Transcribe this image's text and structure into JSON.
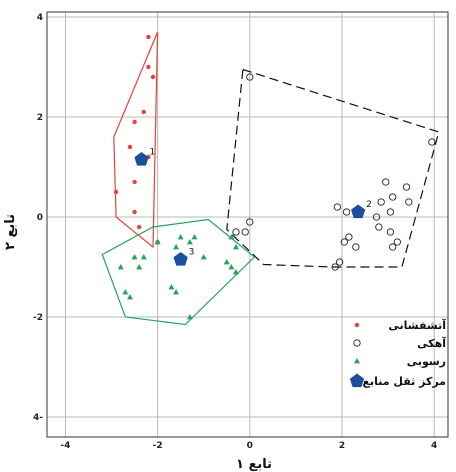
{
  "chart_data": {
    "type": "scatter",
    "title": "",
    "xlabel": "تابع ۱",
    "ylabel": "تابع ۲",
    "xlim": [
      -4.4,
      4.3
    ],
    "ylim": [
      -4.4,
      4.1
    ],
    "xticks": [
      -4,
      -2,
      0,
      2,
      4
    ],
    "yticks": [
      4,
      2,
      0,
      -2,
      -4
    ],
    "xtick_labels": [
      "-4",
      "-2",
      "0",
      "2",
      "4"
    ],
    "ytick_labels": [
      "4",
      "2",
      "0",
      "-2",
      "4-"
    ],
    "grid": true,
    "legend_position": "bottom-right",
    "series": [
      {
        "name": "آتشفشانی",
        "marker": "filled-circle",
        "color": "#e8403c",
        "hull_style": "solid",
        "x": [
          -2.2,
          -2.2,
          -2.1,
          -2.3,
          -2.5,
          -2.6,
          -2.9,
          -2.5,
          -2.0,
          -2.4,
          -2.5,
          -2.2
        ],
        "y": [
          3.6,
          3.0,
          2.8,
          2.1,
          1.9,
          1.4,
          0.5,
          0.7,
          -0.5,
          -0.2,
          0.1,
          1.2
        ]
      },
      {
        "name": "آهکی",
        "marker": "open-circle",
        "color": "#222222",
        "hull_style": "dashed",
        "x": [
          0.0,
          3.95,
          3.4,
          3.1,
          2.85,
          3.05,
          2.75,
          3.45,
          1.9,
          2.1,
          2.15,
          2.05,
          2.3,
          1.95,
          1.85,
          2.8,
          3.05,
          3.2,
          3.1,
          2.95,
          -0.1,
          -0.3,
          0.0
        ],
        "y": [
          2.8,
          1.5,
          0.6,
          0.4,
          0.3,
          0.1,
          0.0,
          0.3,
          0.2,
          0.1,
          -0.4,
          -0.5,
          -0.6,
          -0.9,
          -1.0,
          -0.2,
          -0.3,
          -0.5,
          -0.6,
          0.7,
          -0.3,
          -0.3,
          -0.1
        ]
      },
      {
        "name": "رسوبی",
        "marker": "filled-triangle",
        "color": "#27a35a",
        "hull_style": "solid",
        "x": [
          -2.0,
          -1.3,
          -1.2,
          -1.5,
          -1.6,
          -1.55,
          -0.4,
          -0.3,
          -0.3,
          -0.5,
          -0.4,
          -1.0,
          -1.3,
          -2.4,
          -2.8,
          -2.7,
          -2.6,
          -2.5,
          -1.6,
          -1.7,
          -2.3
        ],
        "y": [
          -0.5,
          -0.5,
          -0.4,
          -0.4,
          -0.6,
          -0.8,
          -0.4,
          -0.6,
          -1.1,
          -0.9,
          -1.0,
          -0.8,
          -2.0,
          -1.0,
          -1.0,
          -1.5,
          -1.6,
          -0.8,
          -1.5,
          -1.4,
          -0.8
        ]
      }
    ],
    "hulls": [
      {
        "series": "آتشفشانی",
        "color": "#e8403c",
        "dash": false,
        "x": [
          -2.0,
          -2.1,
          -2.9,
          -2.95
        ],
        "y": [
          3.7,
          -0.6,
          0.0,
          1.6
        ]
      },
      {
        "series": "آهکی",
        "color": "#111111",
        "dash": true,
        "x": [
          -0.15,
          4.1,
          3.3,
          1.8,
          0.3,
          -0.5
        ],
        "y": [
          2.95,
          1.7,
          -1.0,
          -1.0,
          -0.95,
          -0.25
        ]
      },
      {
        "series": "رسوبی",
        "color": "#27a35a",
        "dash": false,
        "x": [
          -3.2,
          -2.1,
          -0.9,
          0.1,
          -1.4,
          -2.7
        ],
        "y": [
          -0.75,
          -0.2,
          -0.05,
          -0.8,
          -2.15,
          -2.0
        ]
      }
    ],
    "centroids": {
      "name": "مرکز ثقل منابع",
      "marker": "filled-pentagon",
      "color": "#1b4f9c",
      "labels": [
        "1",
        "2",
        "3"
      ],
      "x": [
        -2.35,
        2.35,
        -1.5
      ],
      "y": [
        1.15,
        0.1,
        -0.85
      ]
    },
    "legend": [
      {
        "label": "آتشفشانی",
        "marker": "filled-circle",
        "color": "#e8403c"
      },
      {
        "label": "آهکی",
        "marker": "open-circle",
        "color": "#222222"
      },
      {
        "label": "رسوبی",
        "marker": "filled-triangle",
        "color": "#27a35a"
      },
      {
        "label": "مرکز ثقل منابع",
        "marker": "filled-pentagon",
        "color": "#1b4f9c"
      }
    ]
  }
}
